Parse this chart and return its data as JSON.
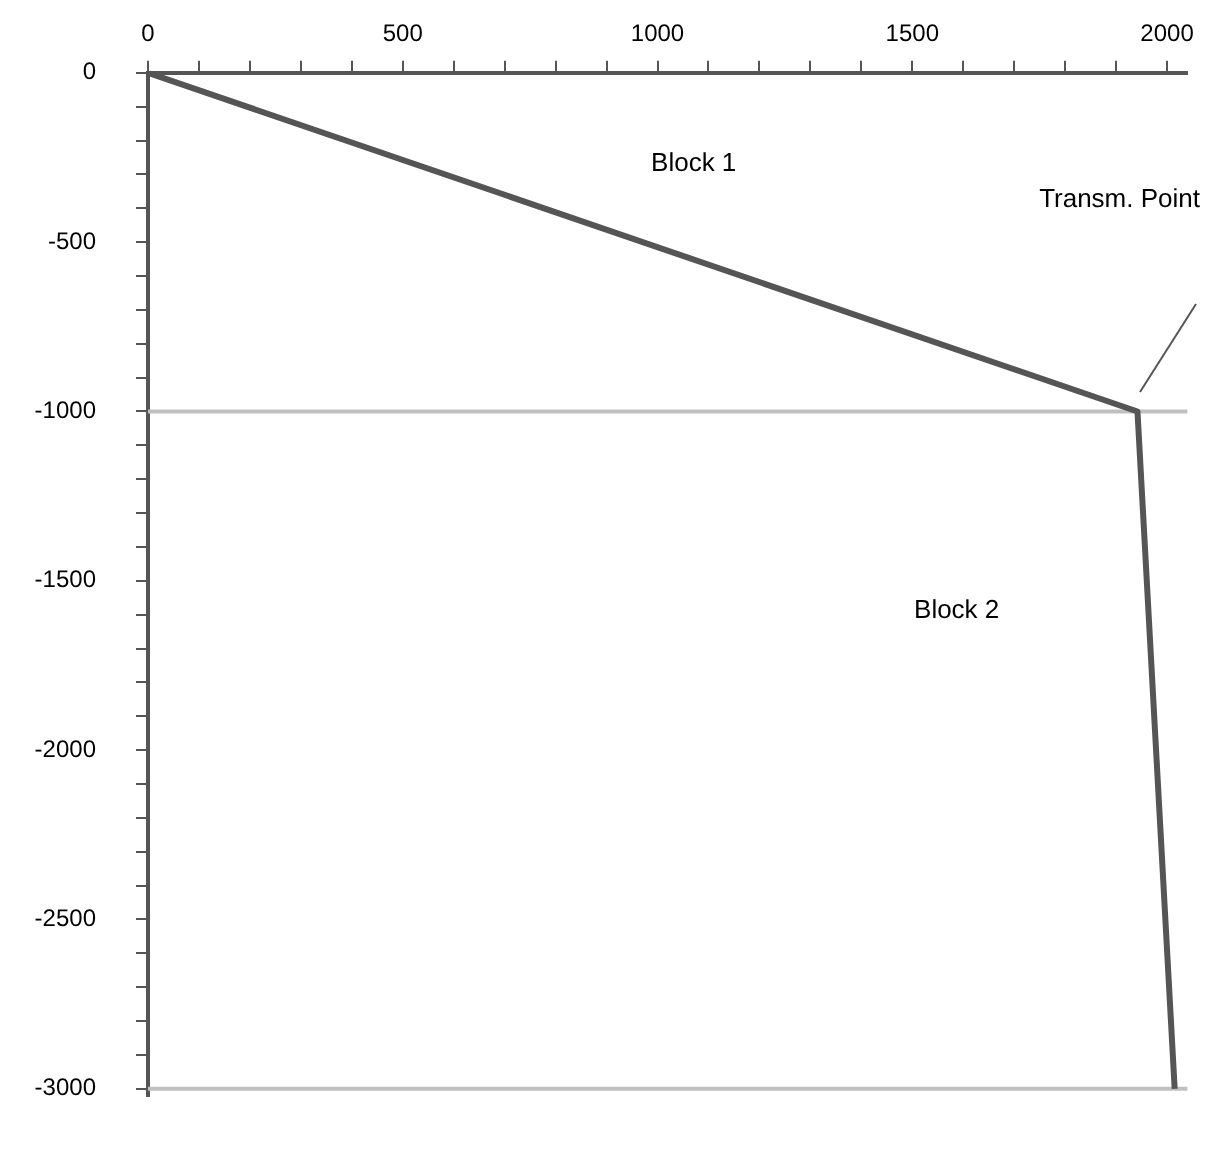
{
  "chart_data": {
    "type": "line",
    "x": [
      0,
      1942,
      2015
    ],
    "series": [
      {
        "color": "#555555",
        "values": [
          0,
          -1000,
          -3000
        ]
      }
    ],
    "xlim": [
      0,
      2040
    ],
    "ylim": [
      -3020,
      0
    ],
    "xticks": [
      0,
      {
        "value": 100,
        "label": null
      },
      {
        "value": 200,
        "label": null
      },
      {
        "value": 300,
        "label": null
      },
      {
        "value": 400,
        "label": null
      },
      500,
      {
        "value": 600,
        "label": null
      },
      {
        "value": 700,
        "label": null
      },
      {
        "value": 800,
        "label": null
      },
      {
        "value": 900,
        "label": null
      },
      1000,
      {
        "value": 1100,
        "label": null
      },
      {
        "value": 1200,
        "label": null
      },
      {
        "value": 1300,
        "label": null
      },
      {
        "value": 1400,
        "label": null
      },
      1500,
      {
        "value": 1600,
        "label": null
      },
      {
        "value": 1700,
        "label": null
      },
      {
        "value": 1800,
        "label": null
      },
      {
        "value": 1900,
        "label": null
      },
      2000
    ],
    "yticks": [
      0,
      {
        "value": -100,
        "label": null
      },
      {
        "value": -200,
        "label": null
      },
      {
        "value": -300,
        "label": null
      },
      {
        "value": -400,
        "label": null
      },
      -500,
      {
        "value": -600,
        "label": null
      },
      {
        "value": -700,
        "label": null
      },
      {
        "value": -800,
        "label": null
      },
      {
        "value": -900,
        "label": null
      },
      -1000,
      {
        "value": -1100,
        "label": null
      },
      {
        "value": -1200,
        "label": null
      },
      {
        "value": -1300,
        "label": null
      },
      {
        "value": -1400,
        "label": null
      },
      -1500,
      {
        "value": -1600,
        "label": null
      },
      {
        "value": -1700,
        "label": null
      },
      {
        "value": -1800,
        "label": null
      },
      {
        "value": -1900,
        "label": null
      },
      -2000,
      {
        "value": -2100,
        "label": null
      },
      {
        "value": -2200,
        "label": null
      },
      {
        "value": -2300,
        "label": null
      },
      {
        "value": -2400,
        "label": null
      },
      -2500,
      {
        "value": -2600,
        "label": null
      },
      {
        "value": -2700,
        "label": null
      },
      {
        "value": -2800,
        "label": null
      },
      {
        "value": -2900,
        "label": null
      },
      -3000
    ],
    "ref_lines": [
      {
        "axis": "y",
        "value": -1000,
        "color": "#c0c0c0"
      },
      {
        "axis": "y",
        "value": -3000,
        "color": "#c0c0c0"
      }
    ],
    "annotations": [
      "Block 1",
      "Block 2",
      "Transm. Point"
    ],
    "grid": false,
    "legend": false,
    "marker": "none",
    "line_style": "solid"
  }
}
